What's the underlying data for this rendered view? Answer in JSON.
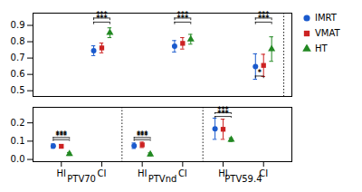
{
  "chart_data": [
    {
      "type": "scatter",
      "categories": [
        null,
        null,
        null,
        null,
        null,
        null
      ],
      "tick_labels": "y",
      "legend": "right",
      "ylim": [
        0.465,
        0.975
      ],
      "yticks": [
        0.5,
        0.6,
        0.7,
        0.8,
        0.9
      ],
      "series": [
        {
          "name": "IMRT",
          "color": "#1a5acd",
          "marker": "circle",
          "values": [
            null,
            0.745,
            null,
            0.772,
            null,
            0.648
          ],
          "err_low": [
            null,
            0.03,
            null,
            0.035,
            null,
            0.078
          ],
          "err_high": [
            null,
            0.03,
            null,
            0.035,
            null,
            0.078
          ]
        },
        {
          "name": "VMAT",
          "color": "#cc2222",
          "marker": "square",
          "values": [
            null,
            0.762,
            null,
            0.79,
            null,
            0.655
          ],
          "err_low": [
            null,
            0.03,
            null,
            0.035,
            null,
            0.068
          ],
          "err_high": [
            null,
            0.03,
            null,
            0.035,
            null,
            0.068
          ]
        },
        {
          "name": "HT",
          "color": "#228822",
          "marker": "triangle",
          "values": [
            null,
            0.855,
            null,
            0.815,
            null,
            0.755
          ],
          "err_low": [
            null,
            0.03,
            null,
            0.03,
            null,
            0.075
          ],
          "err_high": [
            null,
            0.03,
            null,
            0.03,
            null,
            0.075
          ]
        }
      ],
      "annotations": [
        {
          "text": "***",
          "category": 1,
          "from": "IMRT",
          "to": "HT",
          "y": 0.945
        },
        {
          "text": "***",
          "category": 1,
          "from": "IMRT",
          "to": "HT",
          "y": 0.92
        },
        {
          "text": "***",
          "category": 3,
          "from": "IMRT",
          "to": "HT",
          "y": 0.945
        },
        {
          "text": "***",
          "category": 3,
          "from": "IMRT",
          "to": "HT",
          "y": 0.92
        },
        {
          "text": "***",
          "category": 5,
          "from": "IMRT",
          "to": "HT",
          "y": 0.945
        },
        {
          "text": "***",
          "category": 5,
          "from": "IMRT",
          "to": "HT",
          "y": 0.92
        },
        {
          "text": "*",
          "category": 5,
          "from": "IMRT",
          "to": "VMAT",
          "y": 0.59
        }
      ]
    },
    {
      "type": "scatter",
      "categories": [
        "HI",
        "CI",
        "HI",
        "CI",
        "HI",
        "CI"
      ],
      "groups": [
        "PTV70",
        "PTVnd",
        "PTV59.4"
      ],
      "ylim": [
        -0.012,
        0.285
      ],
      "yticks": [
        {
          "value": 0.0,
          "label": "0.0"
        },
        0.1,
        0.2
      ],
      "series": [
        {
          "name": "IMRT",
          "color": "#1a5acd",
          "marker": "circle",
          "values": [
            0.073,
            null,
            0.075,
            null,
            0.168,
            null
          ],
          "err_low": [
            0.012,
            null,
            0.015,
            null,
            0.058,
            null
          ],
          "err_high": [
            0.012,
            null,
            0.015,
            null,
            0.058,
            null
          ]
        },
        {
          "name": "VMAT",
          "color": "#cc2222",
          "marker": "square",
          "values": [
            0.072,
            null,
            0.08,
            null,
            0.165,
            null
          ],
          "err_low": [
            0.01,
            null,
            0.015,
            null,
            0.055,
            null
          ],
          "err_high": [
            0.01,
            null,
            0.015,
            null,
            0.055,
            null
          ]
        },
        {
          "name": "HT",
          "color": "#228822",
          "marker": "triangle",
          "values": [
            0.03,
            null,
            0.028,
            null,
            0.108,
            null
          ],
          "err_low": [
            0.008,
            null,
            0.008,
            null,
            0.01,
            null
          ],
          "err_high": [
            0.008,
            null,
            0.008,
            null,
            0.01,
            null
          ]
        }
      ],
      "annotations": [
        {
          "text": "***",
          "category": 0,
          "from": "IMRT",
          "to": "HT",
          "y": 0.12
        },
        {
          "text": "***",
          "category": 0,
          "from": "IMRT",
          "to": "HT",
          "y": 0.108
        },
        {
          "text": "***",
          "category": 2,
          "from": "IMRT",
          "to": "HT",
          "y": 0.12
        },
        {
          "text": "***",
          "category": 2,
          "from": "IMRT",
          "to": "HT",
          "y": 0.108
        },
        {
          "text": "***",
          "category": 4,
          "from": "IMRT",
          "to": "HT",
          "y": 0.255
        },
        {
          "text": "***",
          "category": 4,
          "from": "IMRT",
          "to": "HT",
          "y": 0.235
        }
      ]
    }
  ]
}
